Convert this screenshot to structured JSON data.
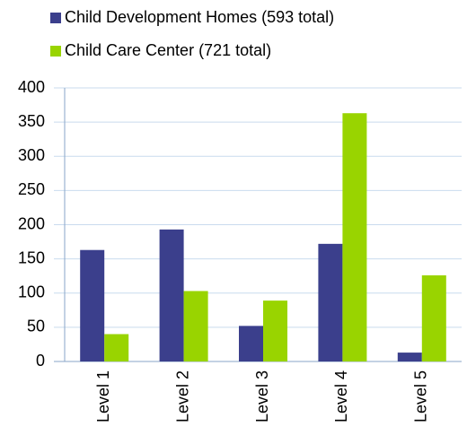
{
  "chart_data": {
    "type": "bar",
    "categories": [
      "Level 1",
      "Level 2",
      "Level 3",
      "Level 4",
      "Level 5"
    ],
    "series": [
      {
        "name": "Child Development Homes (593 total)",
        "color": "#3b3f8c",
        "values": [
          163,
          193,
          52,
          172,
          13
        ]
      },
      {
        "name": "Child Care Center (721 total)",
        "color": "#99d400",
        "values": [
          40,
          103,
          89,
          363,
          126
        ]
      }
    ],
    "ylim": [
      0,
      400
    ],
    "yticks": [
      0,
      50,
      100,
      150,
      200,
      250,
      300,
      350,
      400
    ],
    "grid": true,
    "legend": "top-left"
  }
}
